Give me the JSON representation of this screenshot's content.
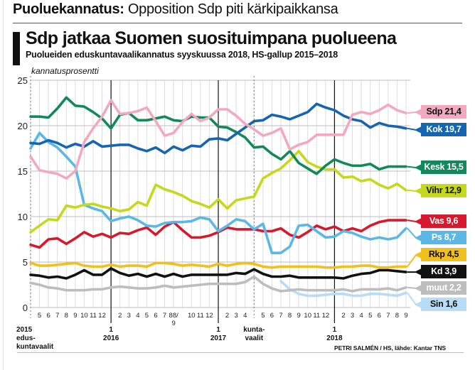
{
  "header": {
    "kicker_bold": "Puoluekannatus:",
    "kicker_text": " Opposition Sdp piti kärkipaikkansa",
    "accent_color": "#111111"
  },
  "credit": "PETRI SALMÉN / HS, lähde: Kantar TNS",
  "chart_data": {
    "type": "line",
    "title": "Sdp jatkaa Suomen suosituimpana puolueena",
    "subtitle": "Puolueiden eduskuntavaalikannatus syyskuussa 2018, HS-gallup 2015–2018",
    "ylabel": "kannatusprosentti",
    "xlabel": "",
    "ylim": [
      0,
      25
    ],
    "yticks": [
      0,
      5,
      10,
      15,
      20,
      25
    ],
    "grid": true,
    "legend_position": "right",
    "x": [
      "2015-04",
      "2015-05",
      "2015-06",
      "2015-07",
      "2015-08",
      "2015-09",
      "2015-10",
      "2015-11",
      "2015-12",
      "2016-01",
      "2016-02",
      "2016-03",
      "2016-04",
      "2016-05",
      "2016-06",
      "2016-07",
      "2016-08",
      "2016-09",
      "2016-10",
      "2016-11",
      "2016-12",
      "2017-01",
      "2017-02",
      "2017-03",
      "2017-04",
      "kuntavaalit 2017",
      "2017-05",
      "2017-06",
      "2017-07",
      "2017-08",
      "2017-09",
      "2017-10",
      "2017-11",
      "2017-12",
      "2018-01",
      "2018-02",
      "2018-03",
      "2018-04",
      "2018-05",
      "2018-06",
      "2018-07",
      "2018-08",
      "2018-09"
    ],
    "month_tick_labels": [
      {
        "i": 1,
        "t": "5"
      },
      {
        "i": 2,
        "t": "6"
      },
      {
        "i": 3,
        "t": "7"
      },
      {
        "i": 4,
        "t": "8"
      },
      {
        "i": 5,
        "t": "9"
      },
      {
        "i": 6,
        "t": "10"
      },
      {
        "i": 7,
        "t": "11"
      },
      {
        "i": 8,
        "t": "12"
      },
      {
        "i": 10,
        "t": "2"
      },
      {
        "i": 11,
        "t": "3"
      },
      {
        "i": 12,
        "t": "4"
      },
      {
        "i": 13,
        "t": "5"
      },
      {
        "i": 14,
        "t": "6"
      },
      {
        "i": 15,
        "t": "7"
      },
      {
        "i": 16,
        "t": "88/"
      },
      {
        "i": 17,
        "t": ""
      },
      {
        "i": 18,
        "t": "10"
      },
      {
        "i": 19,
        "t": "11"
      },
      {
        "i": 20,
        "t": "12"
      },
      {
        "i": 22,
        "t": "2"
      },
      {
        "i": 23,
        "t": "3"
      },
      {
        "i": 24,
        "t": "4"
      },
      {
        "i": 26,
        "t": "5"
      },
      {
        "i": 27,
        "t": "6"
      },
      {
        "i": 28,
        "t": "7"
      },
      {
        "i": 29,
        "t": "8"
      },
      {
        "i": 30,
        "t": "9"
      },
      {
        "i": 31,
        "t": "10"
      },
      {
        "i": 32,
        "t": "11"
      },
      {
        "i": 33,
        "t": "12"
      },
      {
        "i": 35,
        "t": "2"
      },
      {
        "i": 36,
        "t": "3"
      },
      {
        "i": 37,
        "t": "4"
      },
      {
        "i": 38,
        "t": "5"
      },
      {
        "i": 39,
        "t": "6"
      },
      {
        "i": 40,
        "t": "7"
      },
      {
        "i": 41,
        "t": "8"
      },
      {
        "i": 42,
        "t": "9"
      }
    ],
    "extra_tick_sublabel": {
      "i": 16.5,
      "t": "9"
    },
    "major_markers": [
      {
        "i": 0,
        "lines": [
          "2015",
          "edus-",
          "kuntavaalit"
        ],
        "style": "dashed"
      },
      {
        "i": 9,
        "lines": [
          "1",
          "2016"
        ],
        "style": "solid"
      },
      {
        "i": 21,
        "lines": [
          "1",
          "2017"
        ],
        "style": "solid"
      },
      {
        "i": 25,
        "lines": [
          "kunta-",
          "vaalit"
        ],
        "style": "dashed"
      },
      {
        "i": 34,
        "lines": [
          "1",
          "2018"
        ],
        "style": "solid"
      }
    ],
    "series": [
      {
        "name": "Sdp",
        "label": "Sdp 21,4",
        "color": "#f2a9c0",
        "text_color": "#111111",
        "values": [
          16.6,
          15.1,
          14.9,
          14.7,
          14.2,
          15.0,
          18.2,
          19.7,
          21.0,
          22.8,
          21.3,
          21.4,
          21.6,
          22.0,
          20.5,
          18.9,
          19.2,
          20.4,
          21.3,
          20.5,
          20.9,
          21.8,
          21.8,
          21.1,
          20.2,
          19.6,
          18.9,
          19.2,
          19.7,
          17.4,
          17.9,
          18.2,
          19.0,
          19.0,
          19.0,
          19.0,
          21.2,
          21.5,
          21.3,
          21.7,
          22.3,
          21.7,
          21.4
        ]
      },
      {
        "name": "Kok",
        "label": "Kok 19,7",
        "color": "#1565b0",
        "text_color": "#ffffff",
        "values": [
          18.1,
          18.0,
          18.4,
          18.1,
          17.6,
          18.0,
          17.7,
          18.3,
          17.7,
          17.8,
          17.9,
          17.9,
          17.5,
          17.2,
          17.6,
          17.0,
          17.7,
          17.3,
          17.8,
          17.7,
          18.5,
          18.6,
          18.4,
          19.1,
          19.8,
          20.5,
          20.6,
          21.2,
          21.0,
          20.7,
          21.1,
          21.5,
          22.4,
          22.0,
          21.7,
          21.1,
          20.7,
          20.5,
          19.8,
          20.3,
          20.0,
          19.9,
          19.7
        ]
      },
      {
        "name": "Kesk",
        "label": "Kesk 15,5",
        "color": "#12895a",
        "text_color": "#ffffff",
        "values": [
          21.0,
          21.0,
          20.9,
          21.9,
          23.1,
          22.2,
          22.1,
          21.5,
          20.8,
          19.7,
          21.2,
          21.4,
          20.6,
          20.6,
          20.8,
          21.0,
          20.6,
          20.5,
          21.0,
          20.9,
          20.9,
          19.9,
          19.8,
          19.3,
          18.7,
          17.6,
          17.7,
          16.9,
          16.3,
          17.2,
          15.9,
          15.3,
          14.7,
          15.6,
          16.3,
          15.9,
          15.6,
          15.6,
          15.8,
          15.2,
          15.5,
          15.5,
          15.5
        ]
      },
      {
        "name": "Vihr",
        "label": "Vihr 12,9",
        "color": "#c6d81c",
        "text_color": "#111111",
        "values": [
          8.3,
          9.0,
          9.7,
          9.6,
          11.2,
          11.0,
          11.3,
          11.4,
          11.1,
          10.9,
          10.6,
          10.8,
          11.6,
          11.2,
          13.5,
          13.0,
          12.7,
          12.3,
          11.7,
          11.4,
          11.0,
          11.9,
          10.9,
          11.8,
          12.0,
          12.2,
          14.2,
          14.8,
          15.3,
          16.2,
          17.2,
          16.0,
          15.5,
          15.2,
          15.2,
          14.3,
          14.4,
          13.9,
          14.1,
          13.5,
          13.1,
          13.6,
          12.9
        ]
      },
      {
        "name": "Vas",
        "label": "Vas 9,6",
        "color": "#d7192d",
        "text_color": "#ffffff",
        "values": [
          6.9,
          6.6,
          7.5,
          7.6,
          7.0,
          7.6,
          8.3,
          7.8,
          8.1,
          7.7,
          8.2,
          8.1,
          8.5,
          8.8,
          8.0,
          8.9,
          9.4,
          8.5,
          7.7,
          7.7,
          7.9,
          8.3,
          8.8,
          8.6,
          8.6,
          8.6,
          8.4,
          8.4,
          8.7,
          8.0,
          7.7,
          8.3,
          9.0,
          8.6,
          8.9,
          8.4,
          8.7,
          8.4,
          9.0,
          9.4,
          9.6,
          9.6,
          9.6
        ]
      },
      {
        "name": "Ps",
        "label": "Ps 8,7",
        "color": "#5bb8e6",
        "text_color": "#ffffff",
        "values": [
          17.5,
          19.2,
          18.2,
          17.6,
          16.6,
          15.5,
          11.3,
          10.9,
          10.6,
          9.5,
          9.8,
          10.0,
          9.6,
          9.0,
          8.9,
          9.3,
          9.4,
          9.4,
          9.5,
          9.9,
          9.7,
          8.4,
          9.0,
          9.7,
          9.5,
          8.6,
          9.2,
          6.0,
          6.0,
          6.7,
          9.0,
          9.1,
          8.4,
          7.7,
          7.8,
          8.4,
          8.2,
          7.8,
          7.5,
          7.7,
          7.5,
          7.7,
          8.7
        ]
      },
      {
        "name": "Rkp",
        "label": "Rkp 4,5",
        "color": "#f2c01e",
        "text_color": "#111111",
        "values": [
          4.9,
          4.6,
          4.6,
          4.7,
          4.8,
          4.9,
          4.6,
          4.5,
          4.5,
          4.7,
          4.5,
          4.6,
          4.6,
          4.5,
          4.9,
          4.9,
          4.8,
          4.6,
          4.7,
          4.6,
          4.5,
          4.8,
          4.6,
          4.8,
          4.9,
          4.8,
          4.5,
          4.4,
          4.5,
          4.5,
          4.5,
          4.5,
          4.5,
          4.4,
          4.4,
          4.5,
          4.5,
          4.6,
          4.6,
          4.4,
          4.4,
          4.5,
          4.5
        ]
      },
      {
        "name": "Kd",
        "label": "Kd 3,9",
        "color": "#111111",
        "text_color": "#ffffff",
        "values": [
          3.6,
          3.5,
          3.3,
          3.4,
          3.2,
          3.6,
          4.1,
          3.6,
          3.6,
          4.3,
          3.8,
          3.5,
          3.7,
          3.4,
          3.7,
          3.4,
          3.7,
          3.4,
          3.6,
          3.6,
          3.6,
          3.6,
          3.6,
          3.8,
          3.7,
          4.2,
          3.7,
          3.4,
          3.4,
          3.5,
          3.3,
          3.3,
          3.3,
          3.3,
          3.3,
          3.2,
          3.5,
          3.7,
          3.8,
          4.1,
          4.1,
          4.0,
          3.9
        ]
      },
      {
        "name": "muut",
        "label": "muut 2,2",
        "color": "#bdbdbd",
        "text_color": "#ffffff",
        "values": [
          2.7,
          2.5,
          2.2,
          2.1,
          1.9,
          1.9,
          1.9,
          2.0,
          2.0,
          2.2,
          2.3,
          2.2,
          2.1,
          2.1,
          2.2,
          2.4,
          2.2,
          2.3,
          2.4,
          2.5,
          2.6,
          2.6,
          2.6,
          2.6,
          2.8,
          3.4,
          2.6,
          2.1,
          1.8,
          1.9,
          2.0,
          1.9,
          1.9,
          1.9,
          1.9,
          2.0,
          1.8,
          2.0,
          2.0,
          2.0,
          2.1,
          1.9,
          2.2
        ]
      },
      {
        "name": "Sin",
        "label": "Sin 1,6",
        "color": "#b8dcf3",
        "text_color": "#111111",
        "values": [
          null,
          null,
          null,
          null,
          null,
          null,
          null,
          null,
          null,
          null,
          null,
          null,
          null,
          null,
          null,
          null,
          null,
          null,
          null,
          null,
          null,
          null,
          null,
          null,
          null,
          null,
          null,
          null,
          2.9,
          2.0,
          1.5,
          1.3,
          1.3,
          1.4,
          1.5,
          1.5,
          1.3,
          1.3,
          1.5,
          1.5,
          1.4,
          1.3,
          1.6
        ]
      }
    ]
  }
}
